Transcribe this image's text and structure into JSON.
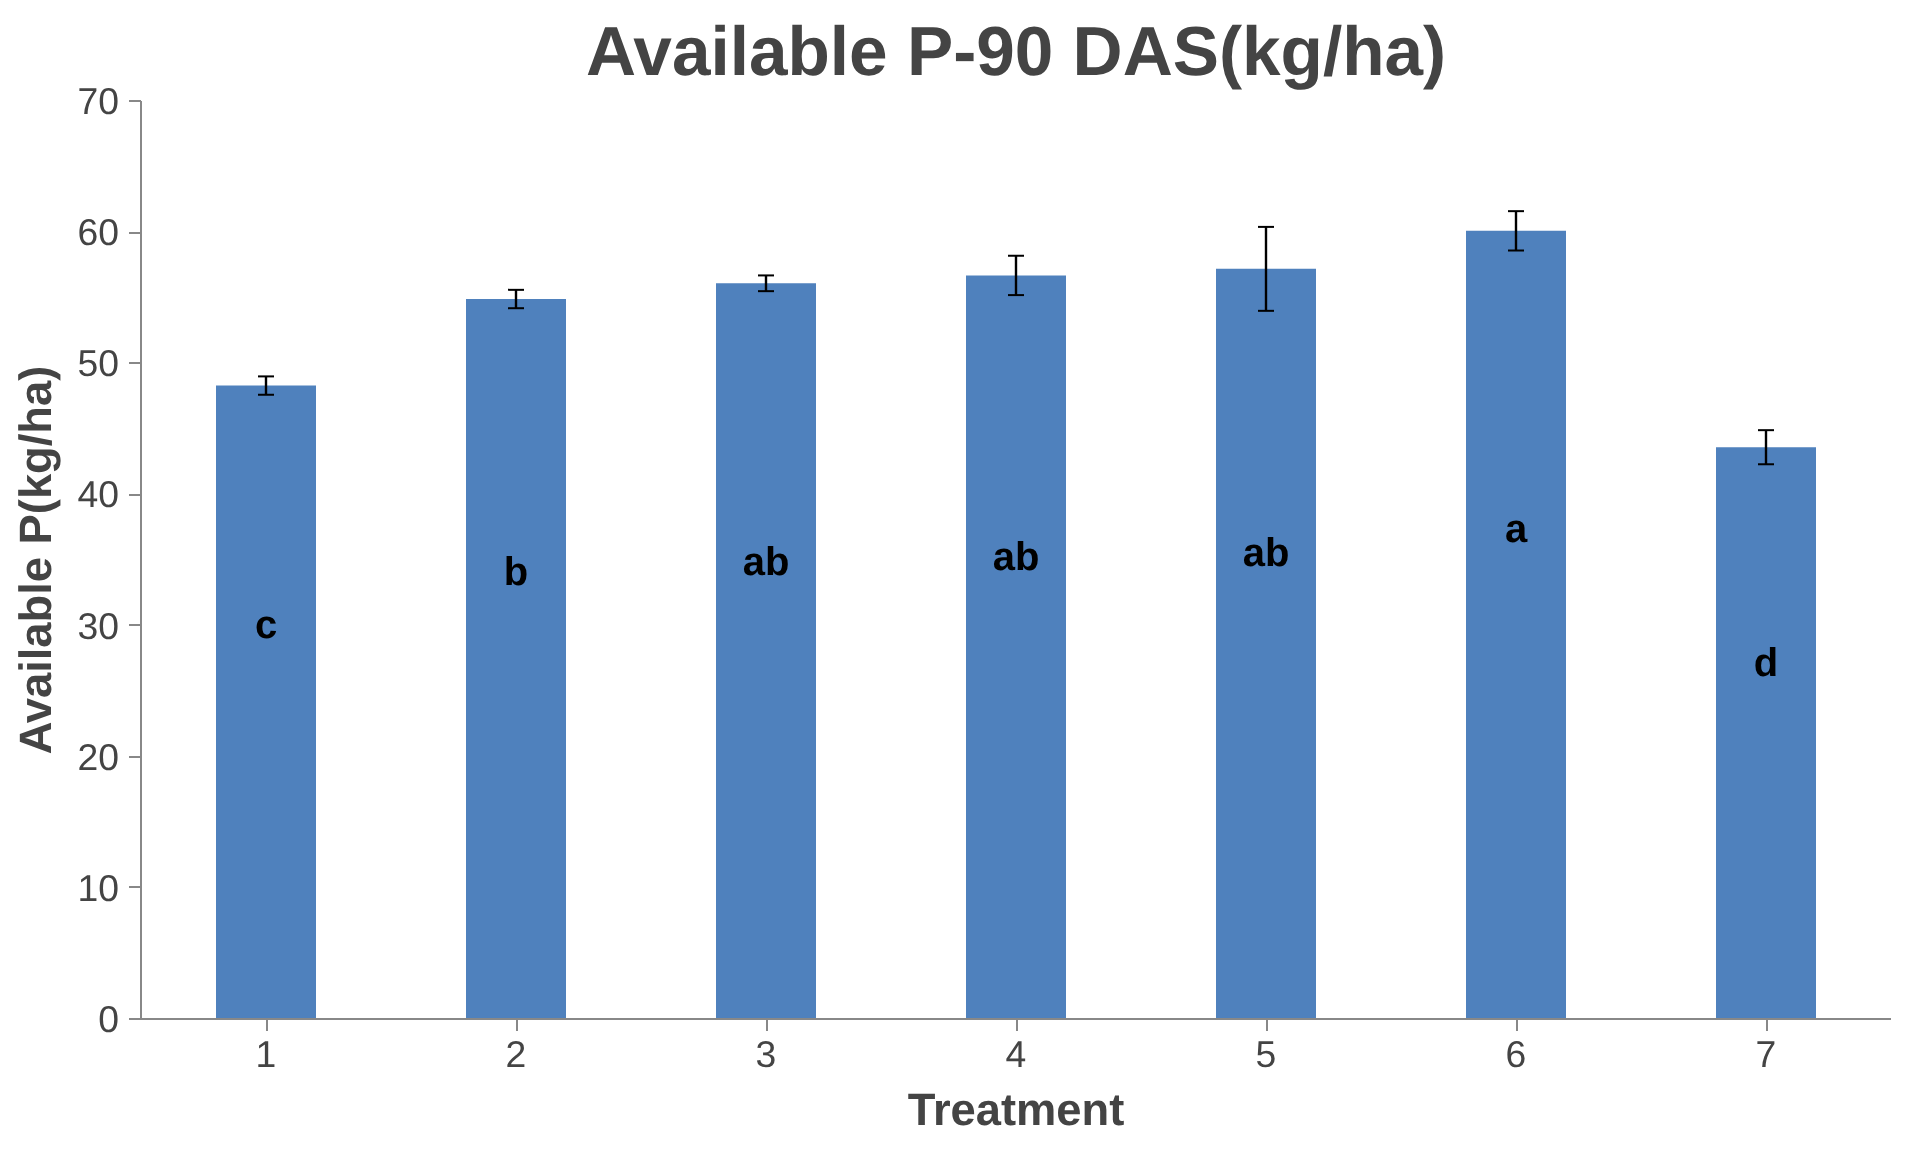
{
  "chart_data": {
    "type": "bar",
    "title": "Available P-90 DAS(kg/ha)",
    "xlabel": "Treatment",
    "ylabel": "Available P(kg/ha)",
    "categories": [
      "1",
      "2",
      "3",
      "4",
      "5",
      "6",
      "7"
    ],
    "values": [
      48.3,
      54.9,
      56.1,
      56.7,
      57.2,
      60.1,
      43.6
    ],
    "errors": [
      0.7,
      0.7,
      0.6,
      1.5,
      3.2,
      1.5,
      1.3
    ],
    "color": "#4f81bd",
    "ylim": [
      0,
      70
    ],
    "yticks": [
      0,
      10,
      20,
      30,
      40,
      50,
      60,
      70
    ],
    "grid": false,
    "annotations": [
      "c",
      "b",
      "ab",
      "ab",
      "ab",
      "a",
      "d"
    ]
  }
}
